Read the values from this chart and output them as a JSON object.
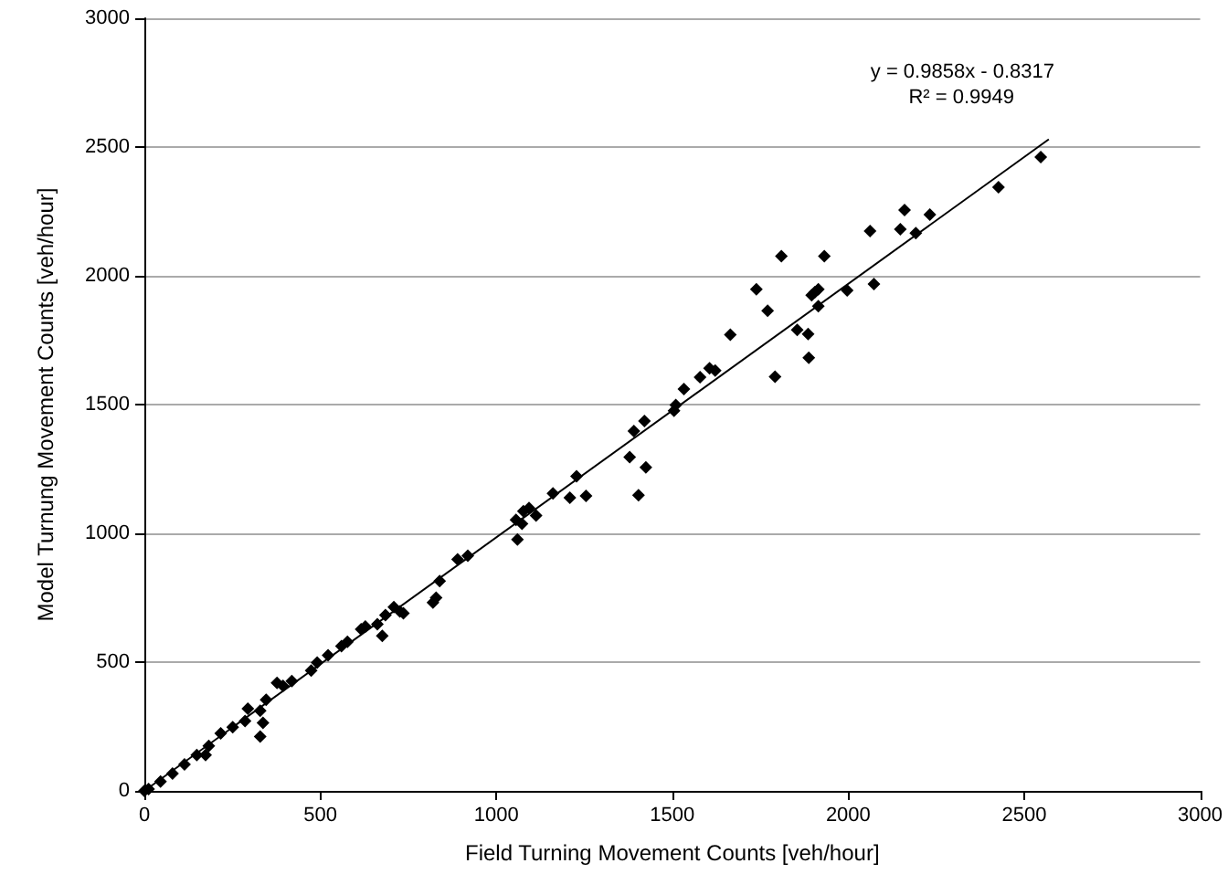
{
  "chart_data": {
    "type": "scatter",
    "xlabel": "Field Turning Movement Counts [veh/hour]",
    "ylabel": "Model Turnung Movement Counts [veh/hour]",
    "xlim": [
      0,
      3000
    ],
    "xticks": [
      0,
      500,
      1000,
      1500,
      2000,
      2500,
      3000
    ],
    "ylim": [
      0,
      3000
    ],
    "yticks": [
      0,
      500,
      1000,
      1500,
      2000,
      2500,
      3000
    ],
    "grid": "y",
    "marker": "diamond",
    "annotations": [
      "y = 0.9858x - 0.8317",
      "R² = 0.9949"
    ],
    "series": [
      {
        "color": "#000000",
        "x": [
          2547,
          2427,
          2160,
          2232,
          2148,
          2192,
          2062,
          1810,
          1932,
          1739,
          2073,
          1997,
          1905,
          1915,
          1896,
          1915,
          1771,
          1665,
          1855,
          1886,
          1888,
          1792,
          1606,
          1622,
          1579,
          1533,
          1510,
          1505,
          1421,
          1391,
          1379,
          1425,
          1404,
          1228,
          1255,
          1209,
          1161,
          1113,
          1093,
          1077,
          1056,
          1073,
          1060,
          919,
          890,
          839,
          829,
          820,
          736,
          726,
          709,
          685,
          676,
          662,
          628,
          616,
          577,
          560,
          522,
          491,
          474,
          419,
          394,
          377,
          346,
          329,
          337,
          329,
          294,
          286,
          251,
          217,
          183,
          174,
          149,
          114,
          80,
          46,
          12,
          0
        ],
        "values": [
          2461,
          2344,
          2255,
          2238,
          2181,
          2166,
          2174,
          2076,
          2076,
          1948,
          1968,
          1943,
          1936,
          1948,
          1925,
          1882,
          1864,
          1771,
          1790,
          1774,
          1682,
          1608,
          1641,
          1632,
          1606,
          1560,
          1498,
          1476,
          1436,
          1397,
          1296,
          1256,
          1148,
          1222,
          1145,
          1138,
          1155,
          1069,
          1098,
          1086,
          1052,
          1037,
          976,
          913,
          899,
          815,
          750,
          731,
          690,
          697,
          714,
          683,
          602,
          647,
          638,
          628,
          579,
          562,
          527,
          498,
          467,
          426,
          408,
          419,
          354,
          311,
          264,
          211,
          319,
          271,
          247,
          223,
          175,
          139,
          139,
          103,
          67,
          36,
          7,
          0
        ]
      },
      {
        "type": "line",
        "color": "#000000",
        "marker": "none",
        "line_style": "solid",
        "x": [
          0,
          2570
        ],
        "values": [
          0,
          2530
        ]
      }
    ]
  }
}
